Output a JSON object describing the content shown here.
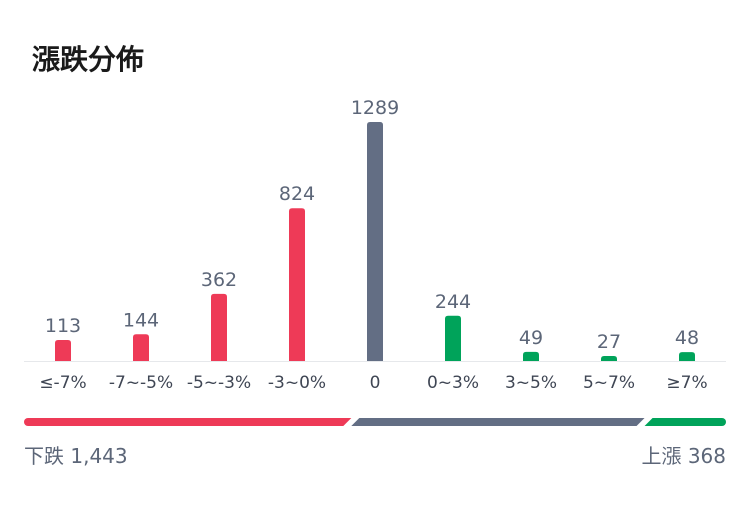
{
  "header": {
    "title": "漲跌分佈"
  },
  "colors": {
    "down": "#ee3a57",
    "flat": "#636e84",
    "up": "#00a35a",
    "baseline": "#e6e8eb"
  },
  "chart_data": {
    "type": "bar",
    "title": "漲跌分佈",
    "categories": [
      "≤-7%",
      "-7~-5%",
      "-5~-3%",
      "-3~0%",
      "0",
      "0~3%",
      "3~5%",
      "5~7%",
      "≥7%"
    ],
    "values": [
      113,
      144,
      362,
      824,
      1289,
      244,
      49,
      27,
      48
    ],
    "value_labels": [
      "113",
      "144",
      "362",
      "824",
      "1289",
      "244",
      "49",
      "27",
      "48"
    ],
    "groups": [
      "down",
      "down",
      "down",
      "down",
      "flat",
      "up",
      "up",
      "up",
      "up"
    ],
    "ylim": [
      0,
      1289
    ],
    "grid": false
  },
  "summary": {
    "down_label": "下跌 1,443",
    "up_label": "上漲 368",
    "down_total": 1443,
    "flat_total": 1289,
    "up_total": 368
  }
}
